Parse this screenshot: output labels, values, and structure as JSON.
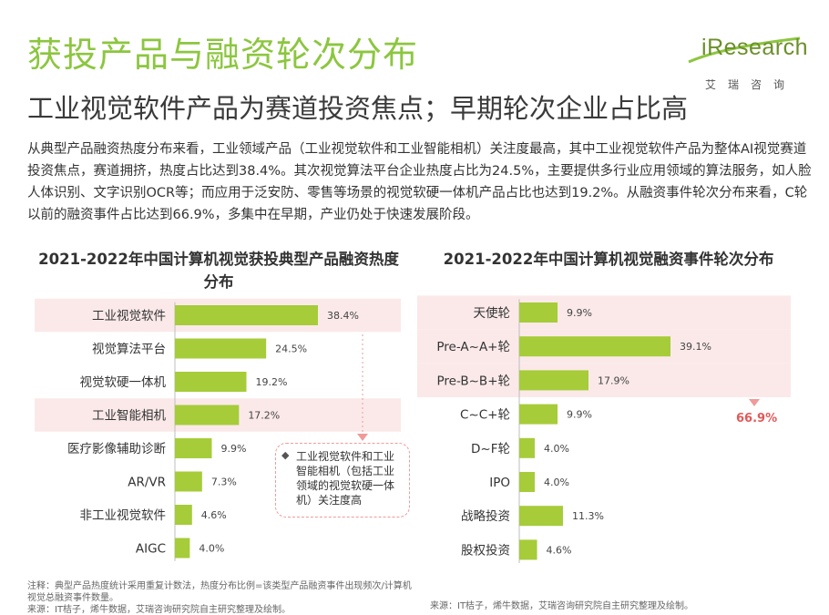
{
  "header": {
    "title": "获投产品与融资轮次分布",
    "subtitle": "工业视觉软件产品为赛道投资焦点；早期轮次企业占比高"
  },
  "logo": {
    "text_i": "i",
    "text_rest": "Research",
    "cn": "艾瑞咨询"
  },
  "intro": "从典型产品融资热度分布来看，工业领域产品（工业视觉软件和工业智能相机）关注度最高，其中工业视觉软件产品为整体AI视觉赛道投资焦点，赛道拥挤，热度占比达到38.4%。其次视觉算法平台企业热度占比为24.5%，主要提供多行业应用领域的算法服务，如人脸人体识别、文字识别OCR等；而应用于泛安防、零售等场景的视觉软硬一体机产品占比也达到19.2%。从融资事件轮次分布来看，C轮以前的融资事件占比达到66.9%，多集中在早期，产业仍处于快速发展阶段。",
  "colors": {
    "accent_green": "#8cc63f",
    "bar_green": "#a6cc3a",
    "highlight_pink": "#fbe9e9",
    "callout_border": "#f09a9a",
    "highlight_red": "#e05a5a"
  },
  "chart_data": [
    {
      "type": "bar",
      "orientation": "horizontal",
      "title": "2021-2022年中国计算机视觉获投典型产品融资热度分布",
      "categories": [
        "工业视觉软件",
        "视觉算法平台",
        "视觉软硬一体机",
        "工业智能相机",
        "医疗影像辅助诊断",
        "AR/VR",
        "非工业视觉软件",
        "AIGC"
      ],
      "values": [
        38.4,
        24.5,
        19.2,
        17.2,
        9.9,
        7.3,
        4.6,
        4.0
      ],
      "value_labels": [
        "38.4%",
        "24.5%",
        "19.2%",
        "17.2%",
        "9.9%",
        "7.3%",
        "4.6%",
        "4.0%"
      ],
      "highlighted_categories": [
        "工业视觉软件",
        "工业智能相机"
      ],
      "callout": "工业视觉软件和工业智能相机（包括工业领域的视觉软硬一体机）关注度高"
    },
    {
      "type": "bar",
      "orientation": "horizontal",
      "title": "2021-2022年中国计算机视觉融资事件轮次分布",
      "categories": [
        "天使轮",
        "Pre-A~A+轮",
        "Pre-B~B+轮",
        "C~C+轮",
        "D~F轮",
        "IPO",
        "战略投资",
        "股权投资"
      ],
      "values": [
        9.9,
        39.1,
        17.9,
        9.9,
        4.0,
        4.0,
        11.3,
        4.6
      ],
      "value_labels": [
        "9.9%",
        "39.1%",
        "17.9%",
        "9.9%",
        "4.0%",
        "4.0%",
        "11.3%",
        "4.6%"
      ],
      "highlighted_categories": [
        "天使轮",
        "Pre-A~A+轮",
        "Pre-B~B+轮"
      ],
      "highlight_sum_label": "66.9%"
    }
  ],
  "footnotes": {
    "left_note": "注释：典型产品热度统计采用重复计数法，热度分布比例=该类型产品融资事件出现频次/计算机视觉总融资事件数量。",
    "left_source": "来源：IT桔子，烯牛数据，艾瑞咨询研究院自主研究整理及绘制。",
    "right_source": "来源：IT桔子，烯牛数据，艾瑞咨询研究院自主研究整理及绘制。"
  }
}
